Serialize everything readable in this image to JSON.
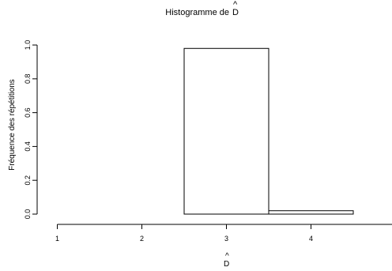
{
  "chart_data": {
    "type": "bar",
    "title": "Histogramme de D̂",
    "title_prefix": "Histogramme de",
    "title_symbol": "D",
    "title_hat": "^",
    "xlabel_symbol": "D",
    "xlabel_hat": "^",
    "ylabel": "Fréquence des répétitions",
    "categories": [
      "1",
      "2",
      "3",
      "4"
    ],
    "values": [
      0.0,
      0.0,
      0.98,
      0.02
    ],
    "xlim": [
      0.5,
      4.5
    ],
    "ylim": [
      0,
      1.0
    ],
    "yticks": [
      "0.0",
      "0.2",
      "0.4",
      "0.6",
      "0.8",
      "1.0"
    ],
    "grid": false,
    "legend": "none"
  }
}
